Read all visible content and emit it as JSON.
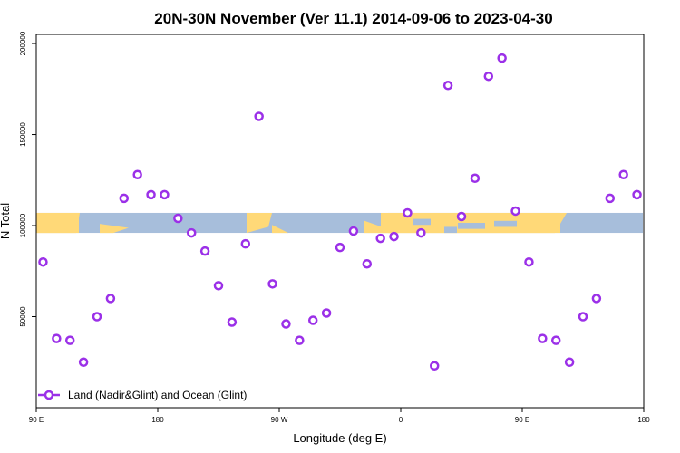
{
  "chart_data": {
    "type": "scatter",
    "title": "20N-30N November (Ver 11.1)   2014-09-06 to 2023-04-30",
    "xlabel": "Longitude (deg E)",
    "ylabel": "N Total",
    "xlim": [
      90,
      540
    ],
    "ylim": [
      0,
      205000
    ],
    "x_ticks": [
      {
        "value": 90,
        "label": "90 E"
      },
      {
        "value": 180,
        "label": "180"
      },
      {
        "value": 270,
        "label": "90 W"
      },
      {
        "value": 360,
        "label": "0"
      },
      {
        "value": 450,
        "label": "90 E"
      },
      {
        "value": 540,
        "label": "180"
      }
    ],
    "y_ticks": [
      {
        "value": 50000,
        "label": "50000"
      },
      {
        "value": 100000,
        "label": "100000"
      },
      {
        "value": 150000,
        "label": "150000"
      },
      {
        "value": 200000,
        "label": "200000"
      }
    ],
    "series": [
      {
        "name": "Land (Nadir&Glint) and Ocean (Glint)",
        "color": "#9b30e8",
        "marker": "circle",
        "x": [
          95,
          105,
          115,
          125,
          135,
          145,
          155,
          165,
          175,
          185,
          195,
          205,
          215,
          225,
          235,
          245,
          255,
          265,
          275,
          285,
          295,
          305,
          315,
          325,
          335,
          345,
          355,
          365,
          375,
          385,
          395,
          405,
          415,
          425,
          435,
          445,
          455,
          465,
          475,
          485,
          495,
          505,
          515,
          525,
          535
        ],
        "y": [
          80000,
          38000,
          37000,
          25000,
          50000,
          60000,
          115000,
          128000,
          117000,
          117000,
          104000,
          96000,
          86000,
          67000,
          47000,
          90000,
          160000,
          68000,
          46000,
          37000,
          48000,
          52000,
          88000,
          97000,
          79000,
          93000,
          94000,
          107000,
          96000,
          23000,
          177000,
          105000,
          126000,
          182000,
          192000,
          108000,
          80000,
          38000,
          37000,
          25000,
          50000,
          60000,
          115000,
          128000,
          117000
        ]
      }
    ],
    "legend": {
      "position": "bottom-left"
    },
    "background_map": {
      "type": "equatorial-strip",
      "y_range": [
        96000,
        107000
      ],
      "land_color": "#ffd978",
      "ocean_color": "#a7bedb"
    },
    "grid": false
  }
}
